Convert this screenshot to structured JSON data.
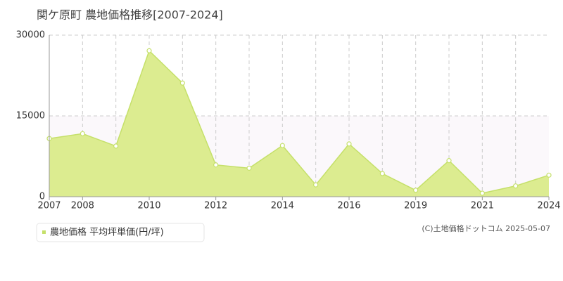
{
  "chart_data": {
    "type": "area",
    "title": "関ケ原町 農地価格推移[2007-2024]",
    "categories": [
      "2007",
      "2008",
      null,
      "2010",
      null,
      "2012",
      null,
      "2014",
      null,
      "2016",
      null,
      "2019",
      null,
      "2021",
      null,
      "2024"
    ],
    "series": [
      {
        "name": "農地価格 平均坪単価(円/坪)",
        "color": "#c5e06a",
        "values": [
          10800,
          11700,
          9400,
          27100,
          21100,
          5900,
          5300,
          9500,
          2200,
          9800,
          4300,
          1200,
          6700,
          650,
          2000,
          4000
        ]
      }
    ],
    "ylim": [
      0,
      30000
    ],
    "yticks": [
      0,
      15000,
      30000
    ],
    "grid": true,
    "source": "(C)土地価格ドットコム 2025-05-07"
  }
}
